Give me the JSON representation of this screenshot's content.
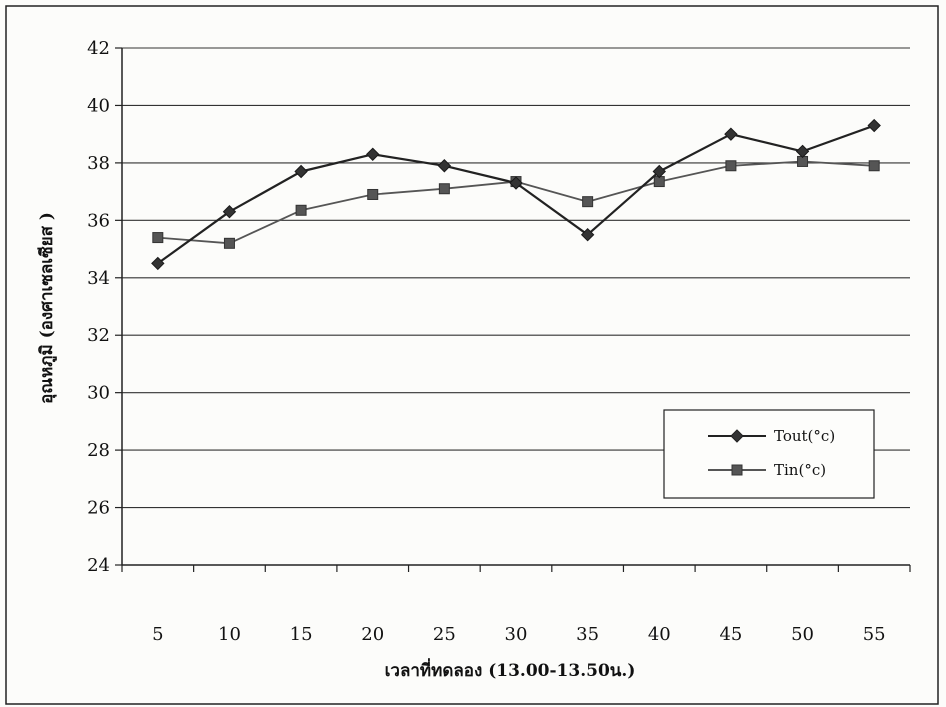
{
  "chart_data": {
    "type": "line",
    "title": "",
    "xlabel": "เวลาที่ทดลอง (13.00-13.50น.)",
    "ylabel": "อุณหภูมิ (องศาเซลเซียส )",
    "x": [
      5,
      10,
      15,
      20,
      25,
      30,
      35,
      40,
      45,
      50,
      55
    ],
    "xtick_labels": [
      "5",
      "10",
      "15",
      "20",
      "25",
      "30",
      "35",
      "40",
      "45",
      "50",
      "55"
    ],
    "ylim": [
      24,
      42
    ],
    "yticks": [
      24,
      26,
      28,
      30,
      32,
      34,
      36,
      38,
      40,
      42
    ],
    "ytick_labels": [
      "24",
      "26",
      "28",
      "30",
      "32",
      "34",
      "36",
      "38",
      "40",
      "42"
    ],
    "grid": true,
    "legend_position": "right-middle",
    "series": [
      {
        "name": "Tout(°c)",
        "marker": "diamond",
        "color": "#222222",
        "values": [
          34.5,
          36.3,
          37.7,
          38.3,
          37.9,
          37.3,
          35.5,
          37.7,
          39.0,
          38.4,
          39.3
        ]
      },
      {
        "name": "Tin(°c)",
        "marker": "square",
        "color": "#555555",
        "values": [
          35.4,
          35.2,
          36.35,
          36.9,
          37.1,
          37.35,
          36.65,
          37.35,
          37.9,
          38.05,
          37.9
        ]
      }
    ]
  }
}
